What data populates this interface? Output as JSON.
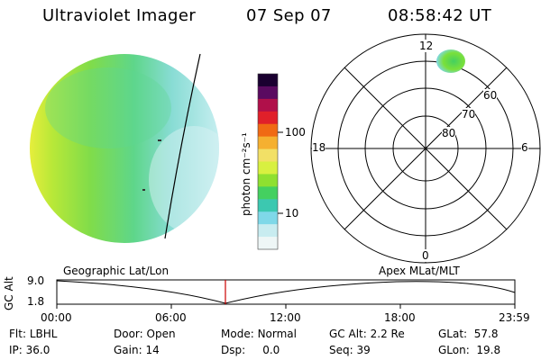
{
  "header": {
    "instrument": "Ultraviolet Imager",
    "date": "07 Sep 07",
    "time": "08:58:42 UT"
  },
  "colorbar": {
    "label": "photon cm⁻²s⁻¹",
    "ticks": [
      "100",
      "10"
    ],
    "palette": [
      "#1a0030",
      "#5a0a60",
      "#b0104a",
      "#e0202a",
      "#f06a14",
      "#f5b030",
      "#f2e066",
      "#d8f040",
      "#8fe030",
      "#44d060",
      "#3cc8b0",
      "#7fd8e8",
      "#c8ecf0",
      "#eef6f6"
    ]
  },
  "polar": {
    "mlt_labels": {
      "top": "12",
      "left": "18",
      "right": "6",
      "bottom": "0"
    },
    "lat_labels": [
      "60",
      "70",
      "80"
    ]
  },
  "timeline": {
    "left_title": "Geographic Lat/Lon",
    "right_title": "Apex MLat/MLT",
    "y_axis_label": "GC Alt",
    "y_ticks": [
      "9.0",
      "1.8"
    ],
    "x_ticks": [
      "00:00",
      "06:00",
      "12:00",
      "18:00",
      "23:59"
    ]
  },
  "status": {
    "flt_label": "Flt:",
    "flt_value": "LBHL",
    "ip_label": "IP:",
    "ip_value": "36.0",
    "door_label": "Door:",
    "door_value": "Open",
    "gain_label": "Gain:",
    "gain_value": "14",
    "mode_label": "Mode:",
    "mode_value": "Normal",
    "dsp_label": "Dsp:",
    "dsp_value": "0.0",
    "gcalt_label": "GC Alt:",
    "gcalt_value": "2.2 Re",
    "seq_label": "Seq:",
    "seq_value": "39",
    "glat_label": "GLat:",
    "glat_value": "57.8",
    "glon_label": "GLon:",
    "glon_value": "19.8"
  }
}
